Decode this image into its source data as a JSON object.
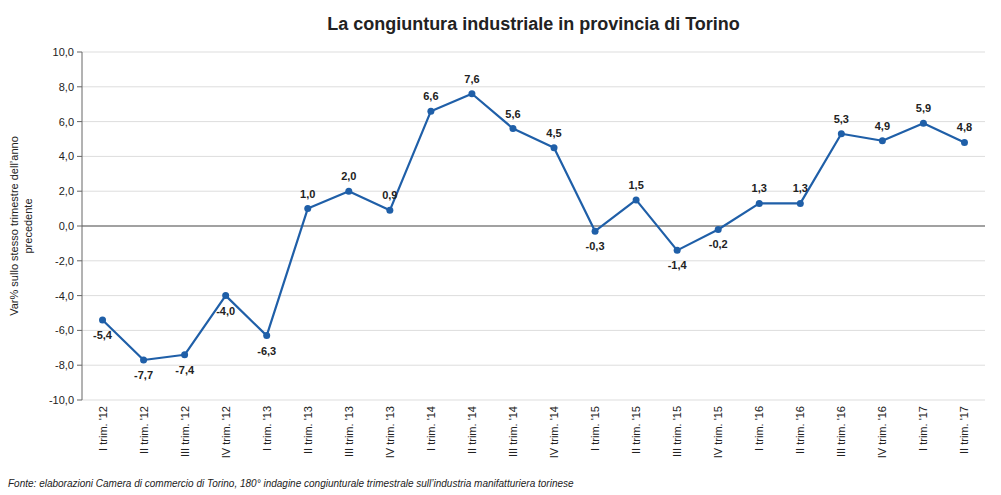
{
  "chart_data": {
    "type": "line",
    "title": "La congiuntura industriale in provincia di Torino",
    "ylabel": "Var% sullo stesso trimestre dell’anno\nprecedente",
    "footnote": "Fonte: elaborazioni Camera di commercio di Torino, 180° indagine congiunturale trimestrale sull’industria  manifatturiera torinese",
    "categories": [
      "I trim. '12",
      "II trim. '12",
      "III trim. '12",
      "IV trim. '12",
      "I trim. '13",
      "II trim. '13",
      "III trim. '13",
      "IV trim. '13",
      "I trim. '14",
      "II trim. '14",
      "III trim. '14",
      "IV trim. '14",
      "I trim. '15",
      "II trim. '15",
      "III trim. '15",
      "IV trim. '15",
      "I trim. '16",
      "II trim. '16",
      "III trim. '16",
      "IV trim. '16",
      "I trim. '17",
      "II trim. '17"
    ],
    "values": [
      -5.4,
      -7.7,
      -7.4,
      -4.0,
      -6.3,
      1.0,
      2.0,
      0.9,
      6.6,
      7.6,
      5.6,
      4.5,
      -0.3,
      1.5,
      -1.4,
      -0.2,
      1.3,
      1.3,
      5.3,
      4.9,
      5.9,
      4.8
    ],
    "value_labels": [
      "-5,4",
      "-7,7",
      "-7,4",
      "-4,0",
      "-6,3",
      "1,0",
      "2,0",
      "0,9",
      "6,6",
      "7,6",
      "5,6",
      "4,5",
      "-0,3",
      "1,5",
      "-1,4",
      "-0,2",
      "1,3",
      "1,3",
      "5,3",
      "4,9",
      "5,9",
      "4,8"
    ],
    "data_labels": true,
    "color": "#1f5fa8",
    "marker": "circle",
    "ylim": [
      -10.0,
      10.0
    ],
    "yticks": [
      {
        "value": -10.0,
        "label": "-10,0"
      },
      {
        "value": -8.0,
        "label": "-8,0"
      },
      {
        "value": -6.0,
        "label": "-6,0"
      },
      {
        "value": -4.0,
        "label": "-4,0"
      },
      {
        "value": -2.0,
        "label": "-2,0"
      },
      {
        "value": 0.0,
        "label": "0,0"
      },
      {
        "value": 2.0,
        "label": "2,0"
      },
      {
        "value": 4.0,
        "label": "4,0"
      },
      {
        "value": 6.0,
        "label": "6,0"
      },
      {
        "value": 8.0,
        "label": "8,0"
      },
      {
        "value": 10.0,
        "label": "10,0"
      }
    ],
    "grid": true
  }
}
